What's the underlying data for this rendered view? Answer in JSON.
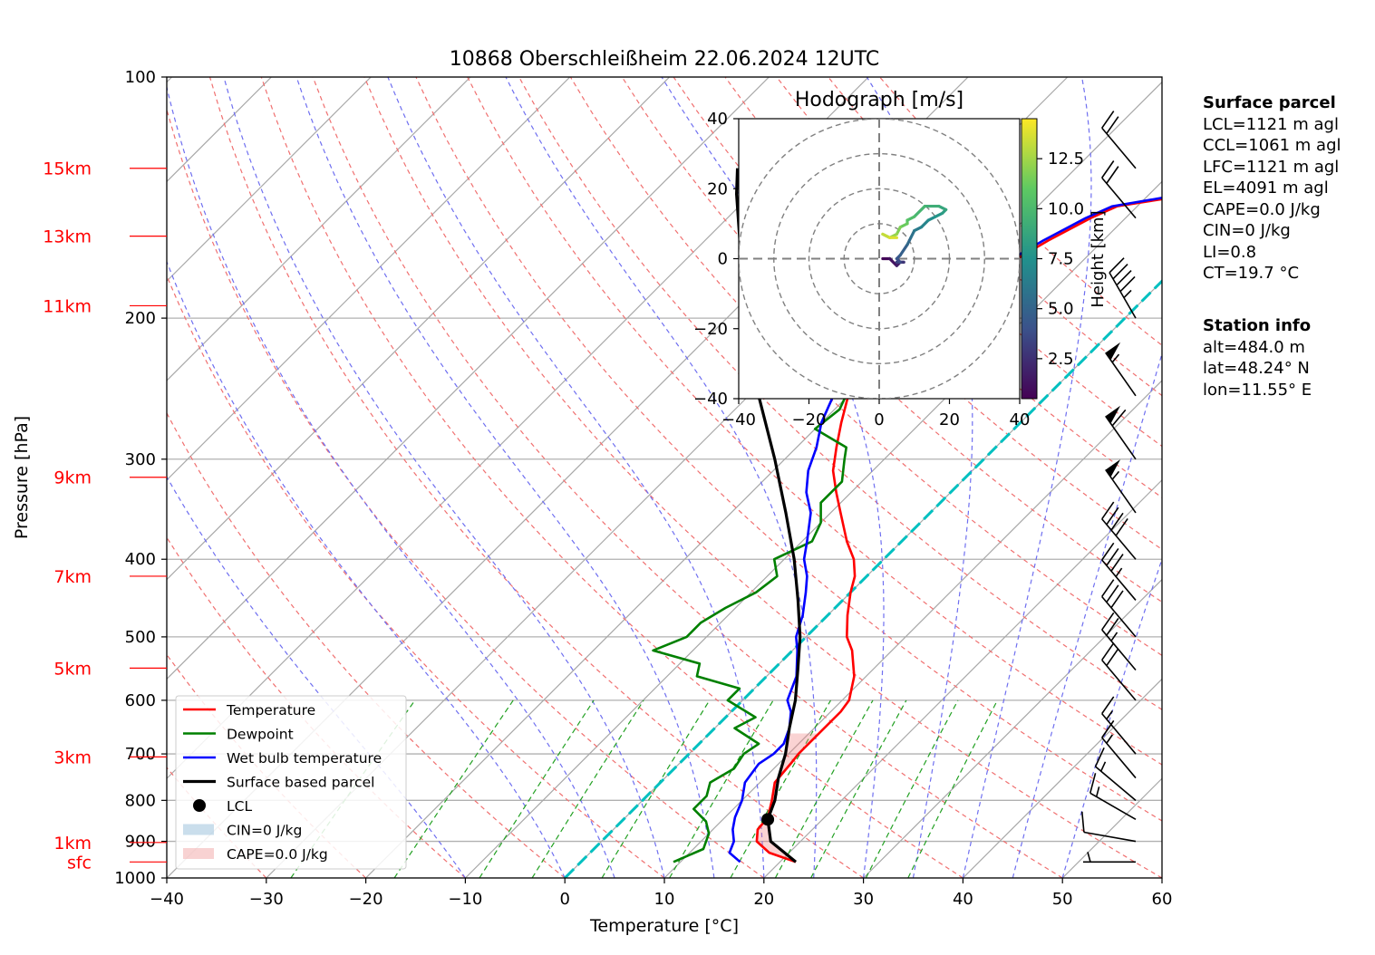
{
  "chart_data": {
    "type": "skew-t",
    "title": "10868 Oberschleißheim 22.06.2024 12UTC",
    "xlabel": "Temperature [°C]",
    "ylabel": "Pressure [hPa]",
    "xlim": [
      -40,
      60
    ],
    "ylim": [
      1000,
      100
    ],
    "y_scale": "log",
    "x_ticks": [
      "−40",
      "−30",
      "−20",
      "−10",
      "0",
      "10",
      "20",
      "30",
      "40",
      "50",
      "60"
    ],
    "y_ticks": [
      {
        "p": 100,
        "label": "100"
      },
      {
        "p": 200,
        "label": "200"
      },
      {
        "p": 300,
        "label": "300"
      },
      {
        "p": 400,
        "label": "400"
      },
      {
        "p": 500,
        "label": "500"
      },
      {
        "p": 600,
        "label": "600"
      },
      {
        "p": 700,
        "label": "700"
      },
      {
        "p": 800,
        "label": "800"
      },
      {
        "p": 900,
        "label": "900"
      },
      {
        "p": 1000,
        "label": "1000"
      }
    ],
    "height_markers": [
      {
        "label": "15km",
        "p": 130
      },
      {
        "label": "13km",
        "p": 158
      },
      {
        "label": "11km",
        "p": 193
      },
      {
        "label": "9km",
        "p": 316
      },
      {
        "label": "7km",
        "p": 420
      },
      {
        "label": "5km",
        "p": 547
      },
      {
        "label": "3km",
        "p": 706
      },
      {
        "label": "1km",
        "p": 903
      },
      {
        "label": "sfc",
        "p": 955
      }
    ],
    "grid": true,
    "legend_position": "lower-left",
    "series": [
      {
        "name": "Temperature",
        "color": "#ff0000",
        "points": [
          [
            955,
            21.6
          ],
          [
            930,
            18
          ],
          [
            900,
            15.6
          ],
          [
            870,
            14.5
          ],
          [
            840,
            14.3
          ],
          [
            800,
            13
          ],
          [
            760,
            11.5
          ],
          [
            720,
            11.2
          ],
          [
            700,
            11
          ],
          [
            680,
            11
          ],
          [
            650,
            11
          ],
          [
            620,
            11
          ],
          [
            600,
            10.7
          ],
          [
            560,
            8.8
          ],
          [
            520,
            6
          ],
          [
            500,
            4.1
          ],
          [
            470,
            2
          ],
          [
            440,
            0
          ],
          [
            420,
            -1.2
          ],
          [
            400,
            -3
          ],
          [
            380,
            -5.5
          ],
          [
            350,
            -9
          ],
          [
            330,
            -11.5
          ],
          [
            310,
            -14
          ],
          [
            290,
            -16
          ],
          [
            270,
            -18
          ],
          [
            250,
            -20
          ],
          [
            240,
            -21.2
          ],
          [
            230,
            -22
          ],
          [
            220,
            -22
          ],
          [
            210,
            -21.5
          ],
          [
            200,
            -20
          ],
          [
            195,
            -18.5
          ],
          [
            188,
            -18.5
          ],
          [
            180,
            -17.5
          ],
          [
            170,
            -17
          ],
          [
            160,
            -15.5
          ],
          [
            150,
            -13.5
          ],
          [
            145,
            -12
          ],
          [
            140,
            -5.5
          ],
          [
            135,
            -5
          ],
          [
            130,
            -5.5
          ],
          [
            125,
            -7
          ],
          [
            120,
            -6.8
          ]
        ]
      },
      {
        "name": "Dewpoint",
        "color": "#008000",
        "points": [
          [
            955,
            9.3
          ],
          [
            920,
            11
          ],
          [
            880,
            10
          ],
          [
            850,
            8.5
          ],
          [
            820,
            6
          ],
          [
            790,
            6
          ],
          [
            760,
            5
          ],
          [
            730,
            6
          ],
          [
            700,
            5.5
          ],
          [
            680,
            6
          ],
          [
            650,
            2
          ],
          [
            630,
            3
          ],
          [
            600,
            -1.5
          ],
          [
            580,
            -1.5
          ],
          [
            560,
            -7
          ],
          [
            540,
            -8
          ],
          [
            520,
            -14
          ],
          [
            500,
            -12
          ],
          [
            480,
            -12
          ],
          [
            460,
            -11
          ],
          [
            440,
            -9.5
          ],
          [
            420,
            -9
          ],
          [
            400,
            -11
          ],
          [
            380,
            -9
          ],
          [
            360,
            -10
          ],
          [
            340,
            -12
          ],
          [
            320,
            -12
          ],
          [
            300,
            -14
          ],
          [
            290,
            -15
          ],
          [
            275,
            -20
          ],
          [
            260,
            -19.5
          ],
          [
            240,
            -21
          ],
          [
            220,
            -26
          ],
          [
            205,
            -31
          ],
          [
            200,
            -28
          ],
          [
            190,
            -31
          ],
          [
            180,
            -31
          ],
          [
            170,
            -33
          ],
          [
            160,
            -33
          ],
          [
            150,
            -34
          ],
          [
            140,
            -35
          ],
          [
            130,
            -35.5
          ]
        ]
      },
      {
        "name": "Wet bulb temperature",
        "color": "#0000ff",
        "points": [
          [
            955,
            16
          ],
          [
            930,
            14
          ],
          [
            900,
            13.3
          ],
          [
            870,
            12
          ],
          [
            840,
            11
          ],
          [
            800,
            10
          ],
          [
            760,
            8.5
          ],
          [
            720,
            8
          ],
          [
            700,
            8.5
          ],
          [
            680,
            8.5
          ],
          [
            650,
            7.5
          ],
          [
            620,
            6
          ],
          [
            600,
            4.5
          ],
          [
            560,
            3
          ],
          [
            520,
            0.5
          ],
          [
            500,
            -1
          ],
          [
            470,
            -2.5
          ],
          [
            440,
            -4.5
          ],
          [
            420,
            -6
          ],
          [
            400,
            -8
          ],
          [
            380,
            -9.5
          ],
          [
            350,
            -12
          ],
          [
            330,
            -14.5
          ],
          [
            310,
            -16.5
          ],
          [
            290,
            -18
          ],
          [
            270,
            -20
          ],
          [
            250,
            -21.5
          ],
          [
            240,
            -22.5
          ],
          [
            230,
            -23
          ],
          [
            220,
            -23
          ],
          [
            210,
            -22.5
          ],
          [
            200,
            -21
          ],
          [
            195,
            -19.5
          ],
          [
            188,
            -19
          ],
          [
            180,
            -18
          ],
          [
            170,
            -17.5
          ],
          [
            160,
            -16
          ],
          [
            150,
            -14
          ],
          [
            145,
            -12.5
          ],
          [
            140,
            -6.5
          ],
          [
            135,
            -6
          ],
          [
            130,
            -6.5
          ],
          [
            125,
            -7.5
          ],
          [
            120,
            -7.5
          ]
        ]
      },
      {
        "name": "Surface based parcel",
        "color": "#000000",
        "points": [
          [
            955,
            21.6
          ],
          [
            900,
            17
          ],
          [
            845,
            14.5
          ],
          [
            800,
            13.3
          ],
          [
            750,
            11.4
          ],
          [
            700,
            9.7
          ],
          [
            650,
            7.5
          ],
          [
            600,
            5.3
          ],
          [
            550,
            2.5
          ],
          [
            500,
            -0.6
          ],
          [
            450,
            -4.5
          ],
          [
            400,
            -9
          ],
          [
            350,
            -14.5
          ],
          [
            300,
            -21
          ],
          [
            250,
            -29
          ],
          [
            200,
            -38
          ],
          [
            180,
            -42
          ],
          [
            160,
            -46.5
          ],
          [
            140,
            -51.5
          ],
          [
            130,
            -54
          ]
        ]
      }
    ],
    "lcl_marker": {
      "name": "LCL",
      "p": 845,
      "t": 14.5
    },
    "cin_label": "CIN=0 J/kg",
    "cape_label": "CAPE=0.0 J/kg",
    "zero_isotherm_color": "#00c0c0",
    "wind_barbs": [
      {
        "p": 955,
        "speed_kt": 5,
        "dir_deg": 270
      },
      {
        "p": 900,
        "speed_kt": 10,
        "dir_deg": 280
      },
      {
        "p": 845,
        "speed_kt": 15,
        "dir_deg": 300
      },
      {
        "p": 800,
        "speed_kt": 15,
        "dir_deg": 310
      },
      {
        "p": 750,
        "speed_kt": 15,
        "dir_deg": 320
      },
      {
        "p": 700,
        "speed_kt": 15,
        "dir_deg": 320
      },
      {
        "p": 600,
        "speed_kt": 20,
        "dir_deg": 320
      },
      {
        "p": 550,
        "speed_kt": 25,
        "dir_deg": 320
      },
      {
        "p": 500,
        "speed_kt": 30,
        "dir_deg": 320
      },
      {
        "p": 450,
        "speed_kt": 35,
        "dir_deg": 320
      },
      {
        "p": 400,
        "speed_kt": 40,
        "dir_deg": 320
      },
      {
        "p": 350,
        "speed_kt": 55,
        "dir_deg": 325
      },
      {
        "p": 300,
        "speed_kt": 60,
        "dir_deg": 325
      },
      {
        "p": 250,
        "speed_kt": 55,
        "dir_deg": 325
      },
      {
        "p": 200,
        "speed_kt": 45,
        "dir_deg": 330
      },
      {
        "p": 150,
        "speed_kt": 20,
        "dir_deg": 320
      },
      {
        "p": 130,
        "speed_kt": 20,
        "dir_deg": 320
      }
    ],
    "hodograph": {
      "title": "Hodograph [m/s]",
      "xlim": [
        -40,
        40
      ],
      "ylim": [
        -40,
        40
      ],
      "ticks": [
        "−40",
        "−20",
        "0",
        "20",
        "40"
      ],
      "rings": [
        10,
        20,
        30,
        40
      ],
      "colorbar_label": "Height [km]",
      "colorbar_ticks": [
        "2.5",
        "5.0",
        "7.5",
        "10.0",
        "12.5"
      ],
      "colorbar_range": [
        0.5,
        14.5
      ],
      "points": [
        [
          1,
          0,
          0.5
        ],
        [
          3,
          0,
          1
        ],
        [
          5,
          -2,
          1.5
        ],
        [
          6,
          -1,
          2
        ],
        [
          7,
          -1,
          2.5
        ],
        [
          5,
          -1,
          3
        ],
        [
          6,
          -1,
          3.5
        ],
        [
          5,
          0,
          4
        ],
        [
          6,
          1,
          4.5
        ],
        [
          8,
          4,
          5
        ],
        [
          9,
          6,
          5.5
        ],
        [
          10,
          8,
          6
        ],
        [
          12,
          9,
          6.5
        ],
        [
          14,
          11,
          7
        ],
        [
          16,
          12,
          7.5
        ],
        [
          18,
          13,
          8
        ],
        [
          19,
          14,
          8.5
        ],
        [
          17,
          15,
          9
        ],
        [
          13,
          15,
          9.5
        ],
        [
          10,
          12,
          10
        ],
        [
          8,
          11,
          10.5
        ],
        [
          8,
          10,
          11
        ],
        [
          6,
          9,
          11.5
        ],
        [
          5,
          7,
          12
        ],
        [
          3,
          6,
          12.5
        ],
        [
          1,
          7,
          13
        ],
        [
          3,
          6,
          13.5
        ],
        [
          5,
          6,
          14
        ]
      ]
    }
  },
  "surface_parcel": {
    "heading": "Surface parcel",
    "lines": [
      "LCL=1121 m agl",
      "CCL=1061 m agl",
      "LFC=1121 m agl",
      "EL=4091 m agl",
      "CAPE=0.0 J/kg",
      "CIN=0 J/kg",
      "LI=0.8",
      "CT=19.7 °C"
    ]
  },
  "station_info": {
    "heading": "Station info",
    "lines": [
      "alt=484.0 m",
      "lat=48.24° N",
      "lon=11.55° E"
    ]
  }
}
